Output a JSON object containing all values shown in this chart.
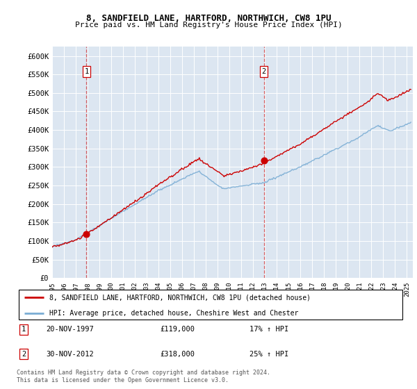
{
  "title1": "8, SANDFIELD LANE, HARTFORD, NORTHWICH, CW8 1PU",
  "title2": "Price paid vs. HM Land Registry's House Price Index (HPI)",
  "ylabel_ticks": [
    "£0",
    "£50K",
    "£100K",
    "£150K",
    "£200K",
    "£250K",
    "£300K",
    "£350K",
    "£400K",
    "£450K",
    "£500K",
    "£550K",
    "£600K"
  ],
  "ylim": [
    0,
    620000
  ],
  "xlim_start": 1995.0,
  "xlim_end": 2025.5,
  "background_color": "#dce6f1",
  "sale1_x": 1997.9,
  "sale1_y": 119000,
  "sale1_label": "1",
  "sale1_date": "20-NOV-1997",
  "sale1_price": "£119,000",
  "sale1_hpi": "17% ↑ HPI",
  "sale2_x": 2012.9,
  "sale2_y": 318000,
  "sale2_label": "2",
  "sale2_date": "30-NOV-2012",
  "sale2_price": "£318,000",
  "sale2_hpi": "25% ↑ HPI",
  "legend_line1": "8, SANDFIELD LANE, HARTFORD, NORTHWICH, CW8 1PU (detached house)",
  "legend_line2": "HPI: Average price, detached house, Cheshire West and Chester",
  "footer": "Contains HM Land Registry data © Crown copyright and database right 2024.\nThis data is licensed under the Open Government Licence v3.0.",
  "line_color_red": "#cc0000",
  "line_color_blue": "#7aadd4",
  "dashed_color": "#cc0000",
  "marker_color": "#cc0000"
}
